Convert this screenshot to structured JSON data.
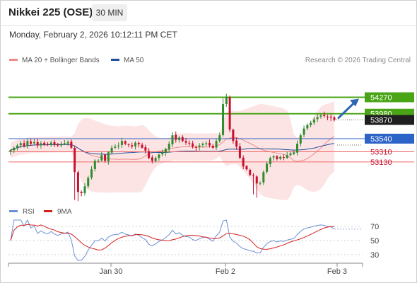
{
  "header": {
    "title": "Nikkei 225 (OSE)",
    "interval": "30 MIN",
    "datetime": "Monday, February 2, 2026 10:12:11 PM CET",
    "copyright": "Research © 2026 Trading Central"
  },
  "colors": {
    "candle_up": "#2e8b2e",
    "candle_down": "#c8102e",
    "bollinger_fill": "#fde4e4",
    "bollinger_line": "#f08a8a",
    "ma50": "#1f4e9c",
    "resistance": "#4aa516",
    "support": "#ef6a6a",
    "pivot": "#2c63c7",
    "last_price": "#1f1f1f",
    "arrow": "#2f66b3",
    "rsi": "#6a8fd6",
    "rsi_ma": "#d42020"
  },
  "chart_data": [
    {
      "type": "candlestick",
      "title": "Nikkei 225 (OSE)",
      "interval": "30 MIN",
      "legend": [
        {
          "name": "MA 20 + Bollinger Bands",
          "color": "#f08a8a"
        },
        {
          "name": "MA 50",
          "color": "#1f4e9c"
        }
      ],
      "x_ticks": [
        "Jan 30",
        "Feb 2",
        "Feb 3"
      ],
      "ylim": [
        52430,
        54800
      ],
      "levels": [
        {
          "value": 54270,
          "label": "54270",
          "kind": "resistance"
        },
        {
          "value": 53980,
          "label": "53980",
          "kind": "resistance"
        },
        {
          "value": 53870,
          "label": "53870",
          "kind": "last_price"
        },
        {
          "value": 53540,
          "label": "53540",
          "kind": "pivot"
        },
        {
          "value": 53310,
          "label": "53310",
          "kind": "support"
        },
        {
          "value": 53130,
          "label": "53130",
          "kind": "support"
        }
      ],
      "close": [
        53340,
        53380,
        53420,
        53460,
        53410,
        53500,
        53450,
        53480,
        53420,
        53460,
        53440,
        53430,
        53470,
        53440,
        53420,
        53450,
        53460,
        53480,
        53380,
        52950,
        52600,
        52580,
        52700,
        52850,
        53000,
        53150,
        53150,
        53250,
        53150,
        53300,
        53380,
        53400,
        53420,
        53500,
        53450,
        53430,
        53400,
        53470,
        53440,
        53380,
        53330,
        53200,
        53150,
        53200,
        53260,
        53300,
        53360,
        53450,
        53600,
        53520,
        53560,
        53500,
        53470,
        53460,
        53400,
        53380,
        53420,
        53450,
        53460,
        53420,
        53380,
        53500,
        53600,
        54150,
        54280,
        53700,
        53500,
        53400,
        53200,
        53050,
        53000,
        52900,
        52880,
        52750,
        52760,
        52950,
        53100,
        53200,
        53230,
        53180,
        53220,
        53200,
        53250,
        53280,
        53300,
        53450,
        53600,
        53720,
        53780,
        53820,
        53880,
        53920,
        53950,
        53940,
        53920,
        53910,
        53870
      ]
    },
    {
      "type": "line",
      "title": "RSI",
      "legend": [
        {
          "name": "RSI",
          "color": "#6a8fd6"
        },
        {
          "name": "9MA",
          "color": "#d42020"
        }
      ],
      "y_ticks": [
        70,
        50,
        30
      ],
      "ylim": [
        20,
        80
      ]
    }
  ]
}
